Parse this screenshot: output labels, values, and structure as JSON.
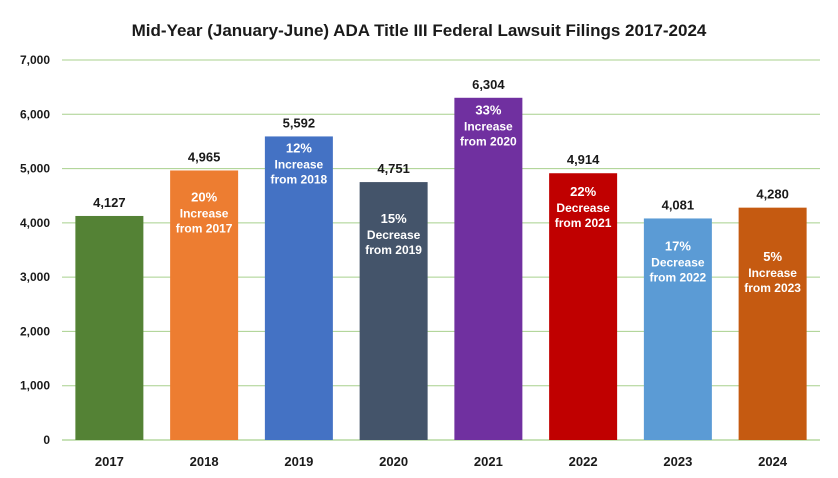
{
  "chart_data": {
    "type": "bar",
    "title": "Mid-Year (January-June) ADA Title III Federal Lawsuit Filings 2017-2024",
    "xlabel": "",
    "ylabel": "",
    "ylim": [
      0,
      7000
    ],
    "yticks": [
      0,
      1000,
      2000,
      3000,
      4000,
      5000,
      6000,
      7000
    ],
    "ytick_labels": [
      "0",
      "1,000",
      "2,000",
      "3,000",
      "4,000",
      "5,000",
      "6,000",
      "7,000"
    ],
    "grid": true,
    "categories": [
      "2017",
      "2018",
      "2019",
      "2020",
      "2021",
      "2022",
      "2023",
      "2024"
    ],
    "values": [
      4127,
      4965,
      5592,
      4751,
      6304,
      4914,
      4081,
      4280
    ],
    "value_labels": [
      "4,127",
      "4,965",
      "5,592",
      "4,751",
      "6,304",
      "4,914",
      "4,081",
      "4,280"
    ],
    "colors": [
      "#548235",
      "#ed7d31",
      "#4472c4",
      "#44546a",
      "#7030a0",
      "#c00000",
      "#5b9bd5",
      "#c55a11"
    ],
    "annotations": [
      null,
      {
        "pct": "20%",
        "line1": "Increase",
        "line2": "from 2017",
        "anchor_value": 4100
      },
      {
        "pct": "12%",
        "line1": "Increase",
        "line2": "from 2018",
        "anchor_value": 5000
      },
      {
        "pct": "15%",
        "line1": "Decrease",
        "line2": "from 2019",
        "anchor_value": 3700
      },
      {
        "pct": "33%",
        "line1": "Increase",
        "line2": "from 2020",
        "anchor_value": 5700
      },
      {
        "pct": "22%",
        "line1": "Decrease",
        "line2": "from 2021",
        "anchor_value": 4200
      },
      {
        "pct": "17%",
        "line1": "Decrease",
        "line2": "from 2022",
        "anchor_value": 3200
      },
      {
        "pct": "5%",
        "line1": "Increase",
        "line2": "from 2023",
        "anchor_value": 3000
      }
    ]
  }
}
